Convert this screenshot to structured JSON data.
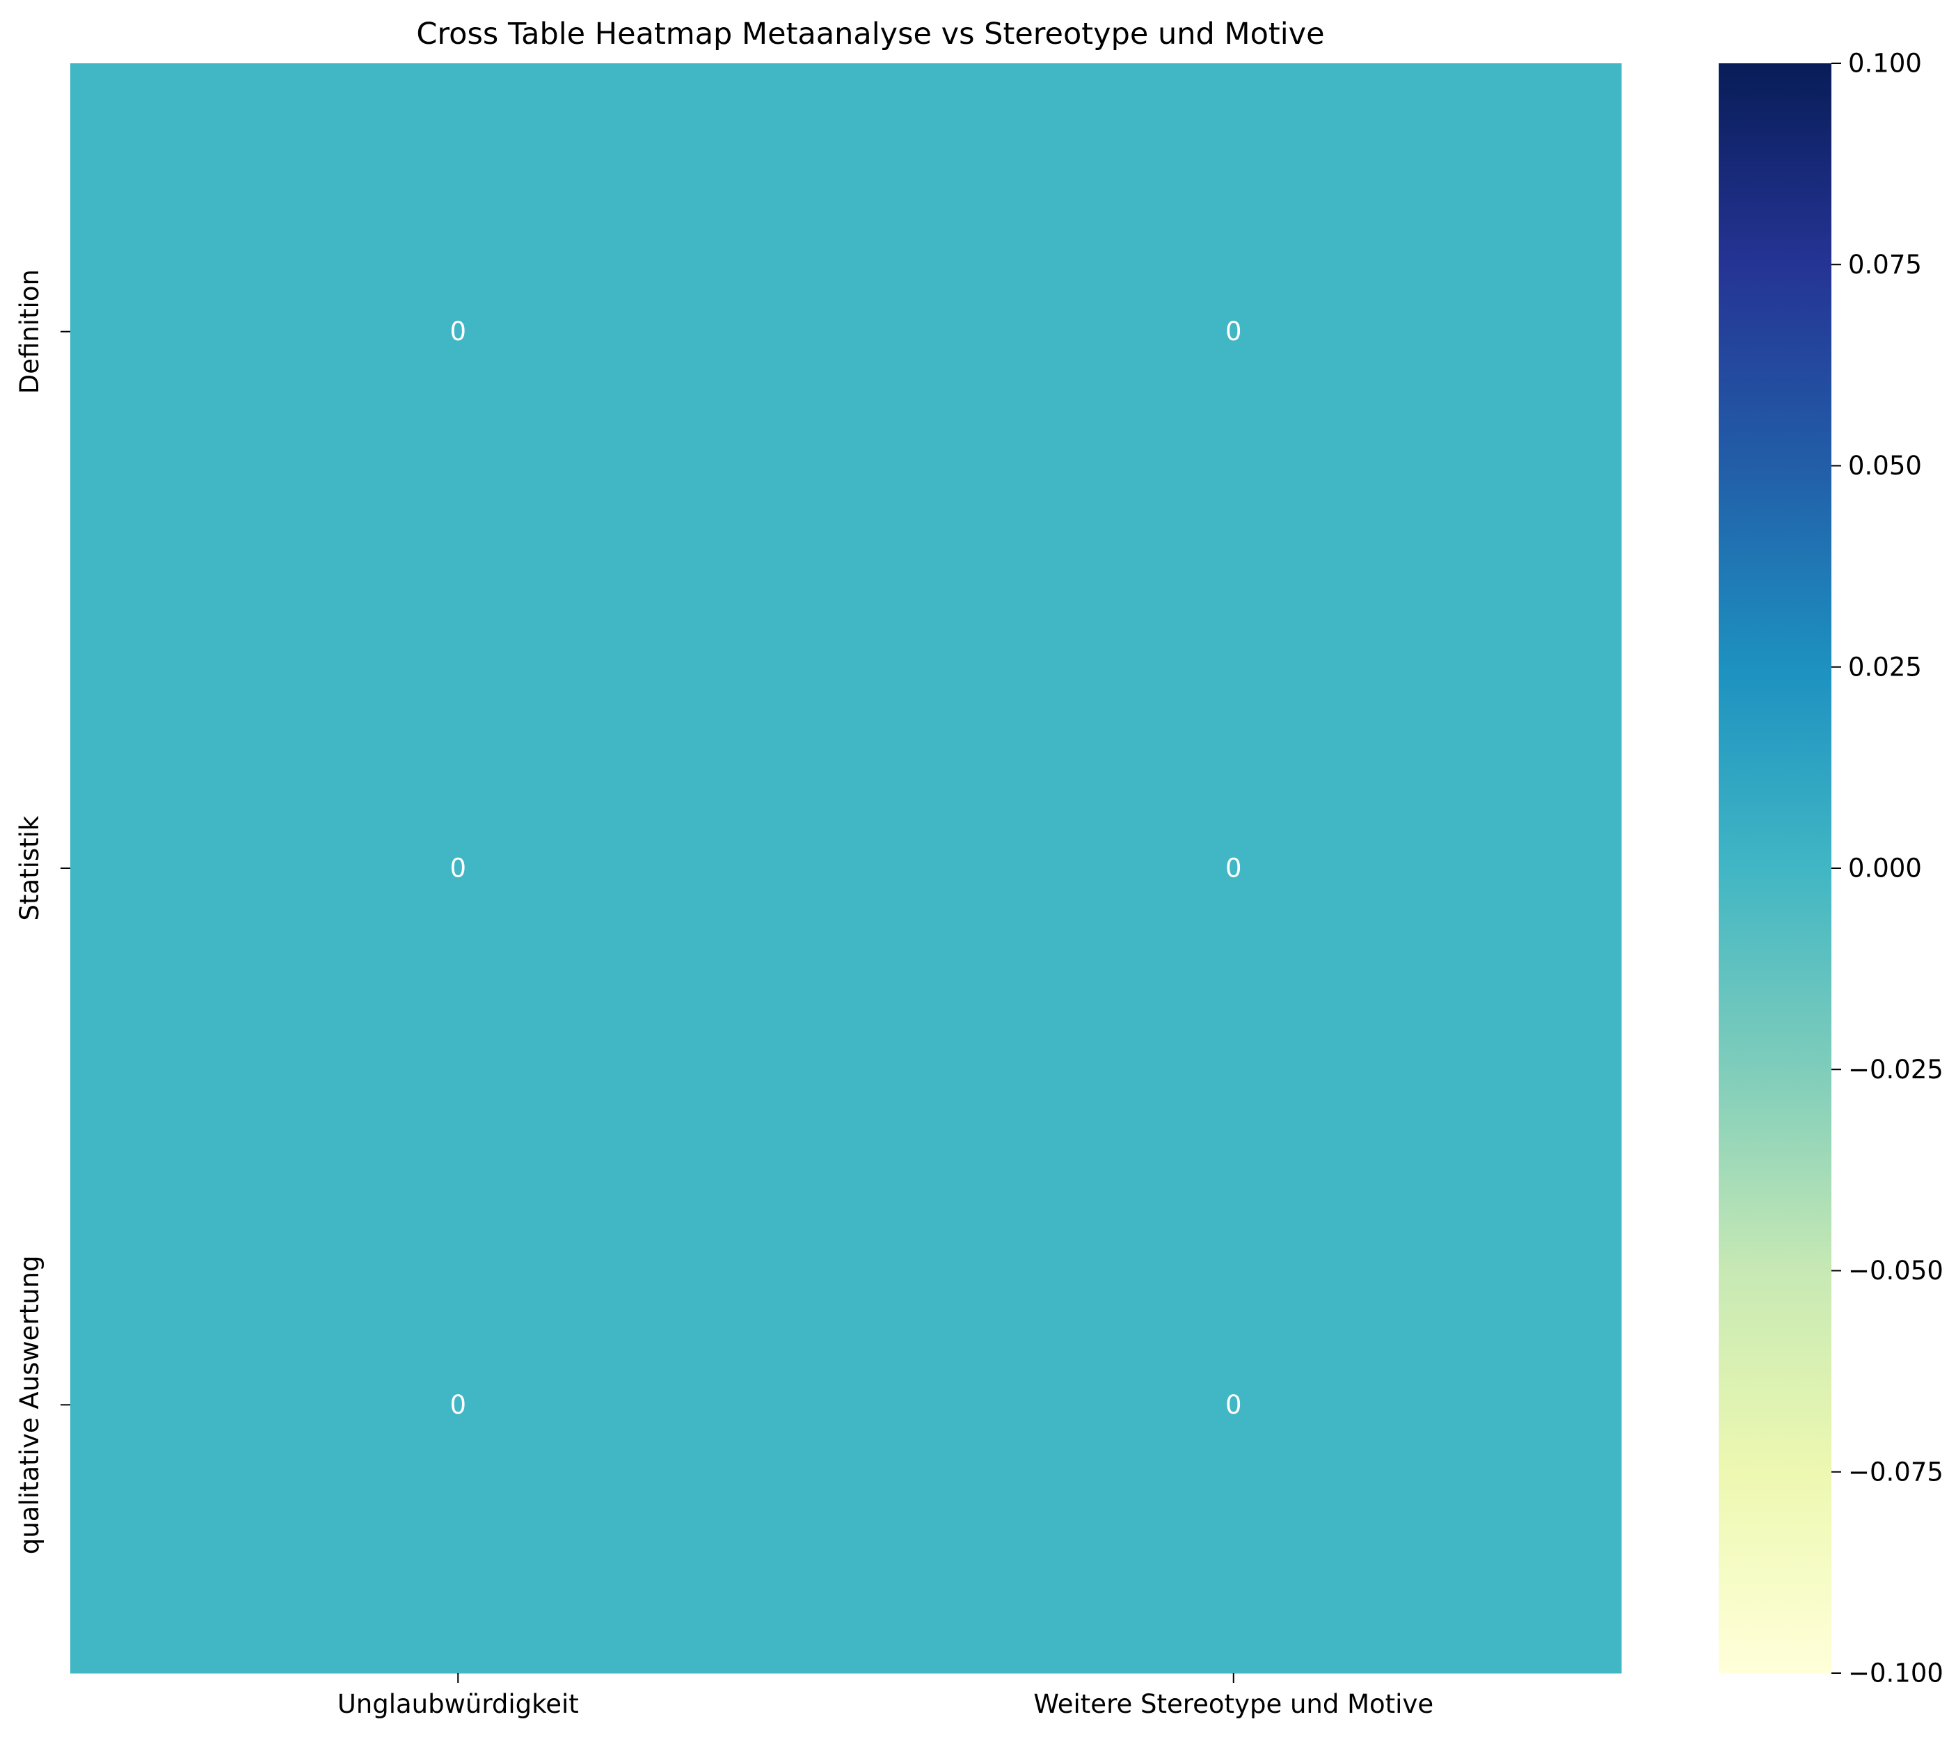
{
  "chart_data": {
    "type": "heatmap",
    "title": "Cross Table Heatmap Metaanalyse vs Stereotype und Motive",
    "xlabel": "",
    "ylabel": "",
    "x_categories": [
      "Unglaubwürdigkeit",
      "Weitere Stereotype und Motive"
    ],
    "y_categories": [
      "Definition",
      "Statistik",
      "qualitative Auswertung"
    ],
    "values": [
      [
        0,
        0
      ],
      [
        0,
        0
      ],
      [
        0,
        0
      ]
    ],
    "annotations": [
      [
        "0",
        "0"
      ],
      [
        "0",
        "0"
      ],
      [
        "0",
        "0"
      ]
    ],
    "colormap": "YlGnBu",
    "colorbar": {
      "vmin": -0.1,
      "vmax": 0.1,
      "ticks": [
        -0.1,
        -0.075,
        -0.05,
        -0.025,
        0.0,
        0.025,
        0.05,
        0.075,
        0.1
      ],
      "tick_labels": [
        "−0.100",
        "−0.075",
        "−0.050",
        "−0.025",
        "0.000",
        "0.025",
        "0.050",
        "0.075",
        "0.100"
      ],
      "stops": [
        "#ffffd9",
        "#edf8b1",
        "#c7e9b4",
        "#7fcdbb",
        "#41b6c4",
        "#1d91c0",
        "#225ea8",
        "#253494",
        "#081d58"
      ]
    },
    "cell_color": "#41b6c4",
    "annotation_color": "#ffffff"
  }
}
